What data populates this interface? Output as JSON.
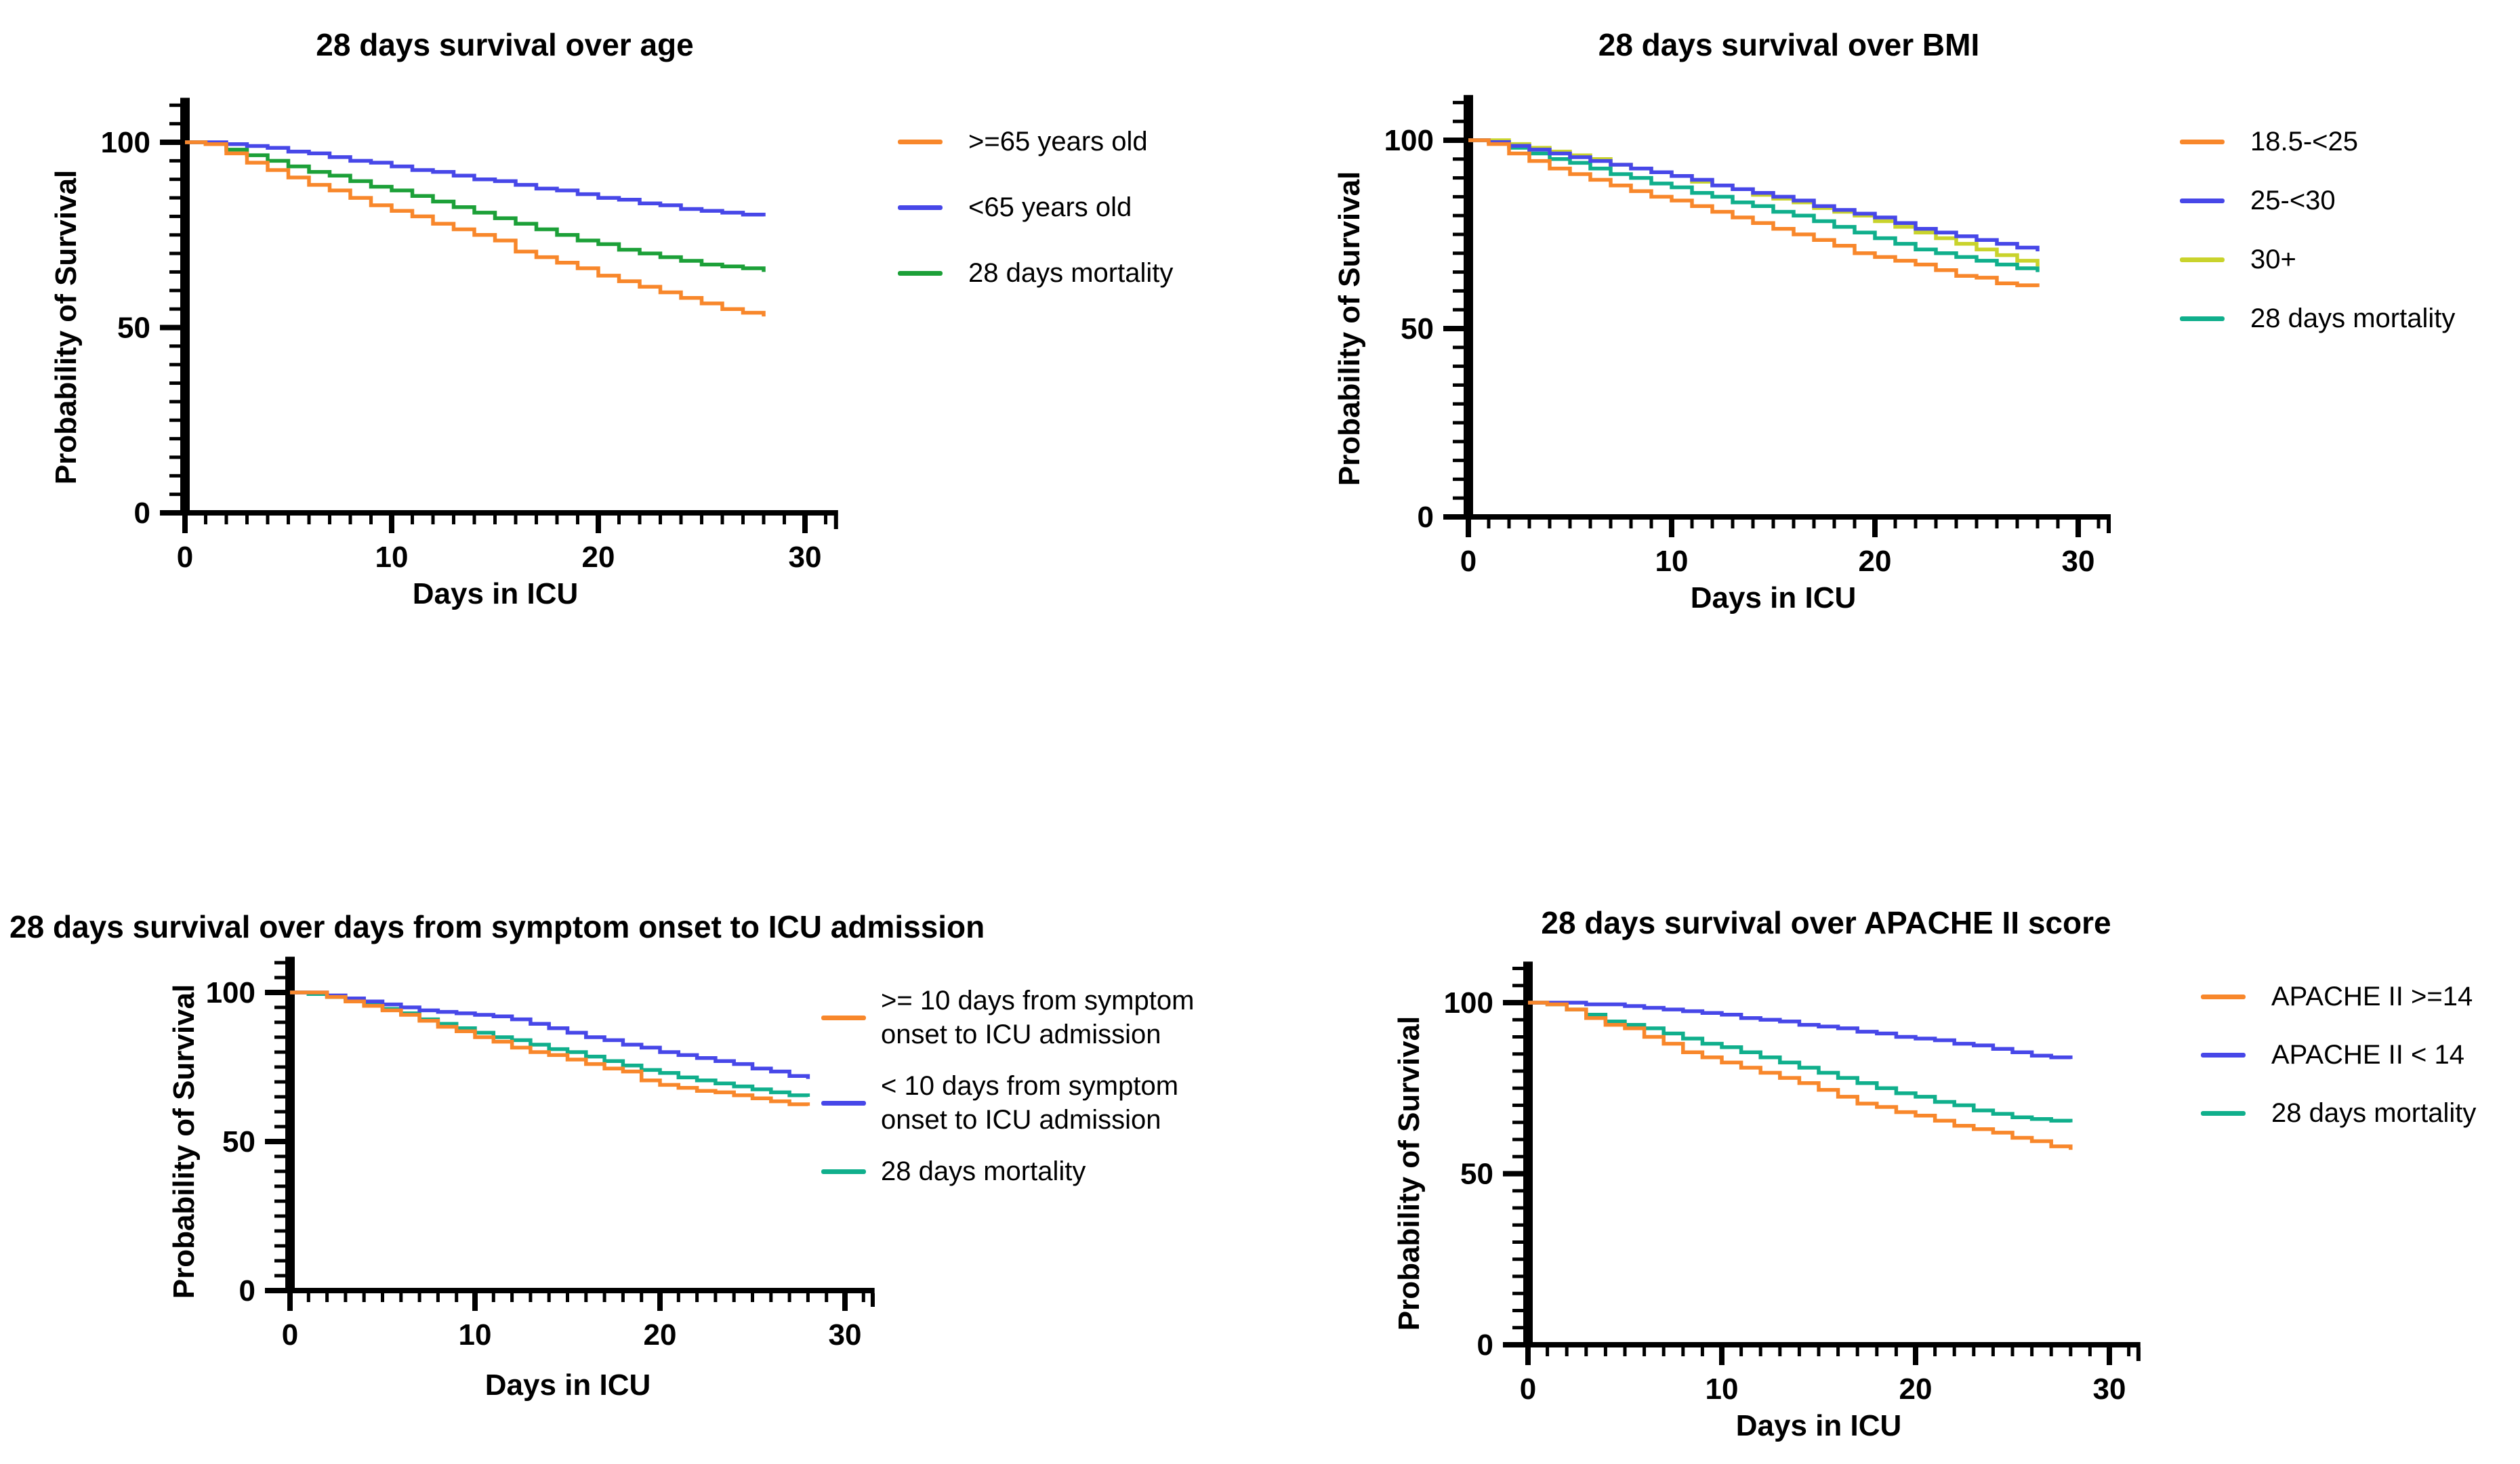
{
  "figure": {
    "background": "#ffffff",
    "description": "Four Kaplan-Meier 28-day survival curves (ICU cohort)"
  },
  "colors": {
    "orange": "#F8872B",
    "blue": "#4747E8",
    "green": "#1CA038",
    "yellow_green": "#C9D32C",
    "teal": "#10AF8C",
    "axis": "#000000"
  },
  "chart_data": [
    {
      "type": "line",
      "subtype": "kaplan-meier-step",
      "title": "28 days survival over age",
      "xlabel": "Days in ICU",
      "ylabel": "Probability of Survival",
      "x_ticks": [
        0,
        10,
        20,
        30
      ],
      "y_ticks": [
        0,
        50,
        100
      ],
      "xlim": [
        0,
        31
      ],
      "ylim": [
        0,
        110
      ],
      "grid": false,
      "legend_position": "right",
      "days": [
        0,
        1,
        2,
        3,
        4,
        5,
        6,
        7,
        8,
        9,
        10,
        11,
        12,
        13,
        14,
        15,
        16,
        17,
        18,
        19,
        20,
        21,
        22,
        23,
        24,
        25,
        26,
        27,
        28
      ],
      "series": [
        {
          "name": ">=65 years old",
          "color": "#F8872B",
          "values": [
            100,
            99.5,
            97,
            94.5,
            92.5,
            90.5,
            88.5,
            87,
            85,
            83,
            81.5,
            80,
            78,
            76.5,
            75,
            73.5,
            70.5,
            69,
            67.5,
            66,
            64,
            62.5,
            61,
            59.5,
            58,
            56.5,
            55,
            54,
            53
          ]
        },
        {
          "name": "<65 years old",
          "color": "#4747E8",
          "values": [
            100,
            100,
            99.5,
            99,
            98.5,
            97.5,
            97,
            96,
            95,
            94.5,
            93.5,
            92.5,
            92,
            91,
            90,
            89.5,
            88.5,
            87.5,
            87,
            86,
            85,
            84.5,
            83.5,
            83,
            82,
            81.5,
            81,
            80.5,
            80
          ]
        },
        {
          "name": "28 days mortality",
          "color": "#1CA038",
          "values": [
            100,
            99.5,
            98,
            96.5,
            95,
            93.5,
            92,
            91,
            89.5,
            88,
            87,
            85.5,
            84,
            82.5,
            81,
            79.5,
            78,
            76.5,
            75,
            73.5,
            72.5,
            71,
            70,
            69,
            68,
            67,
            66.5,
            66,
            65
          ]
        }
      ]
    },
    {
      "type": "line",
      "subtype": "kaplan-meier-step",
      "title": "28 days survival over BMI",
      "xlabel": "Days in ICU",
      "ylabel": "Probability of Survival",
      "x_ticks": [
        0,
        10,
        20,
        30
      ],
      "y_ticks": [
        0,
        50,
        100
      ],
      "xlim": [
        0,
        31
      ],
      "ylim": [
        0,
        110
      ],
      "grid": false,
      "legend_position": "right",
      "days": [
        0,
        1,
        2,
        3,
        4,
        5,
        6,
        7,
        8,
        9,
        10,
        11,
        12,
        13,
        14,
        15,
        16,
        17,
        18,
        19,
        20,
        21,
        22,
        23,
        24,
        25,
        26,
        27,
        28
      ],
      "series": [
        {
          "name": "18.5-<25",
          "color": "#F8872B",
          "values": [
            100,
            99,
            96.5,
            94.5,
            92.5,
            91,
            89.5,
            88,
            86.5,
            85,
            84,
            82.5,
            81,
            79.5,
            78,
            76.5,
            75,
            73.5,
            72,
            70,
            69,
            68,
            67,
            65.5,
            64,
            63.5,
            62,
            61.5,
            61
          ]
        },
        {
          "name": "25-<30",
          "color": "#4747E8",
          "values": [
            100,
            99.5,
            98.5,
            97.5,
            96.5,
            95.5,
            94.5,
            93.5,
            92.5,
            91.5,
            90.5,
            89.5,
            88,
            87,
            86,
            85,
            84,
            82.5,
            81.5,
            80.5,
            79.5,
            78,
            76.5,
            75.5,
            74.5,
            73.5,
            72.5,
            71.5,
            70.5
          ]
        },
        {
          "name": "30+",
          "color": "#C9D32C",
          "values": [
            100,
            100,
            99,
            98,
            97,
            96,
            95,
            93.5,
            92.5,
            91.5,
            90.5,
            89,
            88,
            87,
            85.5,
            84.5,
            83.5,
            82,
            81,
            80,
            78.5,
            77,
            75.5,
            74,
            72.5,
            71,
            69.5,
            68,
            66.5
          ]
        },
        {
          "name": "28 days mortality",
          "color": "#10AF8C",
          "values": [
            100,
            99.5,
            98,
            96.5,
            95,
            94,
            92.5,
            91,
            90,
            88.5,
            87.5,
            86,
            85,
            83.5,
            82.5,
            81,
            80,
            78.5,
            77,
            75.5,
            74,
            72.5,
            71,
            70,
            69,
            68,
            67,
            66,
            65
          ]
        }
      ]
    },
    {
      "type": "line",
      "subtype": "kaplan-meier-step",
      "title": "28 days survival over days from symptom onset to ICU admission",
      "xlabel": "Days in ICU",
      "ylabel": "Probability of Survival",
      "x_ticks": [
        0,
        10,
        20,
        30
      ],
      "y_ticks": [
        0,
        50,
        100
      ],
      "xlim": [
        0,
        31
      ],
      "ylim": [
        0,
        110
      ],
      "grid": false,
      "legend_position": "right",
      "days": [
        0,
        1,
        2,
        3,
        4,
        5,
        6,
        7,
        8,
        9,
        10,
        11,
        12,
        13,
        14,
        15,
        16,
        17,
        18,
        19,
        20,
        21,
        22,
        23,
        24,
        25,
        26,
        27,
        28
      ],
      "series": [
        {
          "name": ">= 10 days from symptom\nonset to ICU admission",
          "color": "#F8872B",
          "values": [
            100,
            100,
            98.5,
            97,
            95.5,
            94,
            92.5,
            90.5,
            88.5,
            87,
            85,
            83.5,
            81.5,
            80,
            79,
            77.5,
            76,
            74.5,
            73.5,
            70.5,
            69,
            68,
            67,
            66.5,
            65.5,
            64.5,
            63.5,
            62.5,
            62
          ]
        },
        {
          "name": "< 10 days from symptom\nonset to ICU admission",
          "color": "#4747E8",
          "values": [
            100,
            100,
            99,
            98,
            97,
            96,
            95,
            94,
            93.5,
            93,
            92.5,
            92,
            91,
            89.5,
            88,
            86.5,
            85,
            84,
            82.5,
            81.5,
            80,
            79,
            78,
            77,
            76,
            74.5,
            73.5,
            72,
            71
          ]
        },
        {
          "name": "28 days mortality",
          "color": "#10AF8C",
          "values": [
            100,
            99.5,
            98.5,
            97.5,
            96,
            94.5,
            93,
            91,
            89.5,
            88,
            86.5,
            85,
            84,
            82.5,
            81,
            80,
            78.5,
            77,
            75.5,
            74,
            73,
            71.5,
            70.5,
            69.5,
            68.5,
            67.5,
            66.5,
            65.5,
            65
          ]
        }
      ]
    },
    {
      "type": "line",
      "subtype": "kaplan-meier-step",
      "title": "28 days survival over APACHE II score",
      "xlabel": "Days in ICU",
      "ylabel": "Probability of Survival",
      "x_ticks": [
        0,
        10,
        20,
        30
      ],
      "y_ticks": [
        0,
        50,
        100
      ],
      "xlim": [
        0,
        31
      ],
      "ylim": [
        0,
        110
      ],
      "grid": false,
      "legend_position": "right",
      "days": [
        0,
        1,
        2,
        3,
        4,
        5,
        6,
        7,
        8,
        9,
        10,
        11,
        12,
        13,
        14,
        15,
        16,
        17,
        18,
        19,
        20,
        21,
        22,
        23,
        24,
        25,
        26,
        27,
        28
      ],
      "series": [
        {
          "name": "APACHE II >=14",
          "color": "#F8872B",
          "values": [
            100,
            99.5,
            98,
            95.5,
            93.5,
            92.5,
            90,
            88,
            85.5,
            84,
            82.5,
            81,
            79.5,
            78,
            76.5,
            74.5,
            72.5,
            70.5,
            69.5,
            68,
            67,
            65.5,
            64,
            63,
            62,
            60.5,
            59.5,
            58,
            57
          ]
        },
        {
          "name": "APACHE II < 14",
          "color": "#4747E8",
          "values": [
            100,
            100,
            100,
            99.5,
            99.5,
            99,
            98.5,
            98,
            97.5,
            97,
            96.5,
            95.5,
            95,
            94.5,
            93.5,
            93,
            92.5,
            91.5,
            91,
            90,
            89.5,
            89,
            88,
            87.5,
            86.5,
            85.5,
            84.5,
            84,
            83.5
          ]
        },
        {
          "name": "28 days mortality",
          "color": "#10AF8C",
          "values": [
            100,
            99.5,
            98,
            96.5,
            94.5,
            93.5,
            92.5,
            91,
            89.5,
            88,
            87,
            85.5,
            84,
            82.5,
            81,
            79.5,
            78,
            76.5,
            75,
            73.5,
            72.5,
            71,
            70,
            68.5,
            67.5,
            66.5,
            66,
            65.5,
            65
          ]
        }
      ]
    }
  ]
}
